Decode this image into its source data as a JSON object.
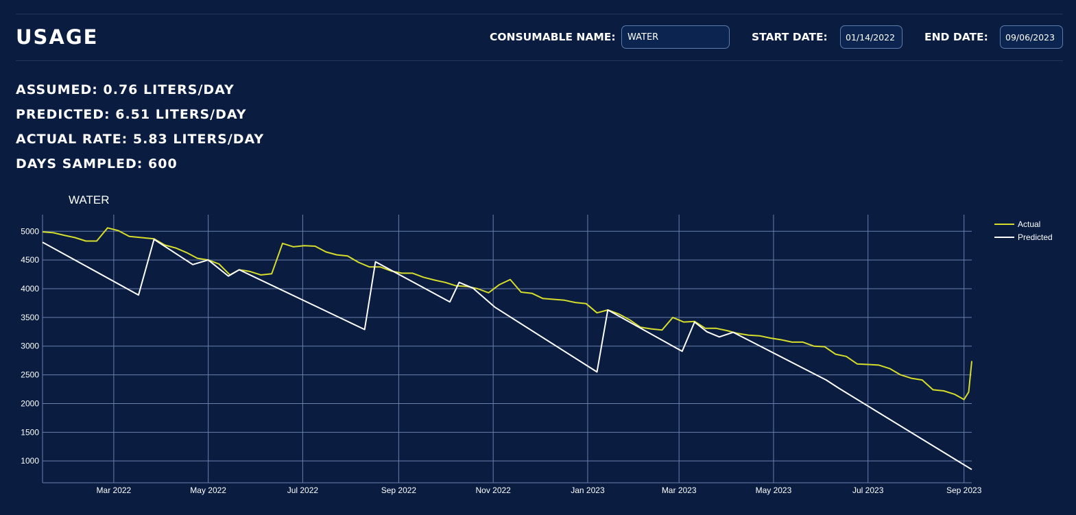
{
  "header": {
    "title": "USAGE",
    "consumable_label": "CONSUMABLE NAME:",
    "consumable_value": "WATER",
    "start_label": "START DATE:",
    "start_value": "01/14/2022",
    "end_label": "END DATE:",
    "end_value": "09/06/2023"
  },
  "stats": {
    "assumed": "ASSUMED: 0.76 LITERS/DAY",
    "predicted": "PREDICTED: 6.51 LITERS/DAY",
    "actual": "ACTUAL RATE: 5.83 LITERS/DAY",
    "days": "DAYS SAMPLED: 600"
  },
  "chart_data": {
    "type": "line",
    "title": "WATER",
    "xlabel": "",
    "ylabel": "",
    "x_type": "date",
    "xlim": [
      "2022-01-14",
      "2023-09-06"
    ],
    "ylim": [
      620,
      5290
    ],
    "yticks": [
      1000,
      1500,
      2000,
      2500,
      3000,
      3500,
      4000,
      4500,
      5000
    ],
    "xticks": [
      {
        "label": "Mar 2022",
        "date": "2022-03-01"
      },
      {
        "label": "May 2022",
        "date": "2022-05-01"
      },
      {
        "label": "Jul 2022",
        "date": "2022-07-01"
      },
      {
        "label": "Sep 2022",
        "date": "2022-09-01"
      },
      {
        "label": "Nov 2022",
        "date": "2022-11-01"
      },
      {
        "label": "Jan 2023",
        "date": "2023-01-01"
      },
      {
        "label": "Mar 2023",
        "date": "2023-03-01"
      },
      {
        "label": "May 2023",
        "date": "2023-05-01"
      },
      {
        "label": "Jul 2023",
        "date": "2023-07-01"
      },
      {
        "label": "Sep 2023",
        "date": "2023-09-01"
      }
    ],
    "grid": true,
    "legend_position": "top-right",
    "series": [
      {
        "name": "Actual",
        "color": "#d6dd2a",
        "points": [
          [
            "2022-01-14",
            4990
          ],
          [
            "2022-01-21",
            4975
          ],
          [
            "2022-01-28",
            4930
          ],
          [
            "2022-02-04",
            4890
          ],
          [
            "2022-02-11",
            4830
          ],
          [
            "2022-02-18",
            4830
          ],
          [
            "2022-02-25",
            5060
          ],
          [
            "2022-03-04",
            5010
          ],
          [
            "2022-03-11",
            4910
          ],
          [
            "2022-03-27",
            4870
          ],
          [
            "2022-04-03",
            4760
          ],
          [
            "2022-04-10",
            4710
          ],
          [
            "2022-04-17",
            4630
          ],
          [
            "2022-04-24",
            4530
          ],
          [
            "2022-05-01",
            4500
          ],
          [
            "2022-05-08",
            4430
          ],
          [
            "2022-05-15",
            4240
          ],
          [
            "2022-05-21",
            4330
          ],
          [
            "2022-05-28",
            4300
          ],
          [
            "2022-06-04",
            4240
          ],
          [
            "2022-06-11",
            4260
          ],
          [
            "2022-06-18",
            4790
          ],
          [
            "2022-06-25",
            4730
          ],
          [
            "2022-07-02",
            4750
          ],
          [
            "2022-07-09",
            4740
          ],
          [
            "2022-07-16",
            4640
          ],
          [
            "2022-07-23",
            4590
          ],
          [
            "2022-07-30",
            4570
          ],
          [
            "2022-08-06",
            4460
          ],
          [
            "2022-08-13",
            4380
          ],
          [
            "2022-08-20",
            4380
          ],
          [
            "2022-08-27",
            4310
          ],
          [
            "2022-09-03",
            4270
          ],
          [
            "2022-09-10",
            4270
          ],
          [
            "2022-09-17",
            4200
          ],
          [
            "2022-09-24",
            4150
          ],
          [
            "2022-10-01",
            4110
          ],
          [
            "2022-10-08",
            4050
          ],
          [
            "2022-10-15",
            4040
          ],
          [
            "2022-10-22",
            4000
          ],
          [
            "2022-10-29",
            3930
          ],
          [
            "2022-11-05",
            4070
          ],
          [
            "2022-11-12",
            4160
          ],
          [
            "2022-11-19",
            3940
          ],
          [
            "2022-11-26",
            3920
          ],
          [
            "2022-12-03",
            3830
          ],
          [
            "2022-12-17",
            3800
          ],
          [
            "2022-12-24",
            3760
          ],
          [
            "2022-12-31",
            3740
          ],
          [
            "2023-01-07",
            3580
          ],
          [
            "2023-01-14",
            3630
          ],
          [
            "2023-01-21",
            3560
          ],
          [
            "2023-01-28",
            3460
          ],
          [
            "2023-02-04",
            3330
          ],
          [
            "2023-02-11",
            3300
          ],
          [
            "2023-02-18",
            3280
          ],
          [
            "2023-02-25",
            3500
          ],
          [
            "2023-03-04",
            3420
          ],
          [
            "2023-03-11",
            3430
          ],
          [
            "2023-03-18",
            3310
          ],
          [
            "2023-03-25",
            3310
          ],
          [
            "2023-04-01",
            3270
          ],
          [
            "2023-04-08",
            3220
          ],
          [
            "2023-04-15",
            3190
          ],
          [
            "2023-04-22",
            3180
          ],
          [
            "2023-04-29",
            3140
          ],
          [
            "2023-05-06",
            3110
          ],
          [
            "2023-05-13",
            3070
          ],
          [
            "2023-05-20",
            3070
          ],
          [
            "2023-05-27",
            3000
          ],
          [
            "2023-06-03",
            2990
          ],
          [
            "2023-06-10",
            2860
          ],
          [
            "2023-06-17",
            2820
          ],
          [
            "2023-06-24",
            2690
          ],
          [
            "2023-07-01",
            2680
          ],
          [
            "2023-07-08",
            2670
          ],
          [
            "2023-07-15",
            2610
          ],
          [
            "2023-07-22",
            2500
          ],
          [
            "2023-07-29",
            2440
          ],
          [
            "2023-08-05",
            2410
          ],
          [
            "2023-08-12",
            2240
          ],
          [
            "2023-08-19",
            2220
          ],
          [
            "2023-08-26",
            2160
          ],
          [
            "2023-09-01",
            2070
          ],
          [
            "2023-09-04",
            2200
          ],
          [
            "2023-09-06",
            2740
          ]
        ]
      },
      {
        "name": "Predicted",
        "color": "#ffffff",
        "points": [
          [
            "2022-01-14",
            4810
          ],
          [
            "2022-03-17",
            3890
          ],
          [
            "2022-03-27",
            4860
          ],
          [
            "2022-04-21",
            4420
          ],
          [
            "2022-05-01",
            4500
          ],
          [
            "2022-05-14",
            4220
          ],
          [
            "2022-05-21",
            4330
          ],
          [
            "2022-08-10",
            3290
          ],
          [
            "2022-08-17",
            4470
          ],
          [
            "2022-10-04",
            3770
          ],
          [
            "2022-10-10",
            4110
          ],
          [
            "2022-10-19",
            4010
          ],
          [
            "2022-11-02",
            3680
          ],
          [
            "2023-01-07",
            2550
          ],
          [
            "2023-01-14",
            3630
          ],
          [
            "2023-03-03",
            2910
          ],
          [
            "2023-03-11",
            3420
          ],
          [
            "2023-03-19",
            3250
          ],
          [
            "2023-03-27",
            3160
          ],
          [
            "2023-04-05",
            3240
          ],
          [
            "2023-06-04",
            2410
          ],
          [
            "2023-06-12",
            2270
          ],
          [
            "2023-09-06",
            850
          ]
        ]
      }
    ]
  }
}
